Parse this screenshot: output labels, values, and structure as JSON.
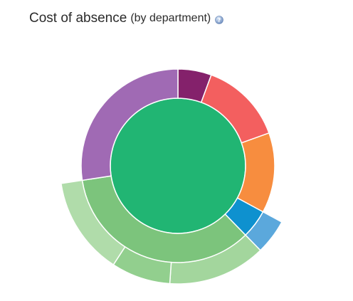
{
  "header": {
    "title": "Cost of absence",
    "subtitle": "(by department)",
    "help_icon": "help-circle-icon"
  },
  "chart_data": {
    "type": "sunburst",
    "title": "Cost of absence",
    "subtitle": "(by department)",
    "rings": [
      {
        "level": 1,
        "slices": [
          {
            "value": 100,
            "color": "#21b573"
          }
        ]
      },
      {
        "level": 2,
        "slices": [
          {
            "value": 5.6,
            "color": "#84216b"
          },
          {
            "value": 13.9,
            "color": "#f35f5f"
          },
          {
            "value": 13.4,
            "color": "#f78d3f"
          },
          {
            "value": 4.8,
            "color": "#0e91cf"
          },
          {
            "value": 34.9,
            "color": "#7cc47c"
          },
          {
            "value": 27.4,
            "color": "#a06ab4"
          }
        ]
      },
      {
        "level": 3,
        "slices": [
          {
            "value": 4.8,
            "color": "#5ba8dc",
            "parent_index": 3
          },
          {
            "value": 13.4,
            "color": "#a3d69d",
            "parent_index": 4
          },
          {
            "value": 8.1,
            "color": "#92cf8e",
            "parent_index": 4
          },
          {
            "value": 13.4,
            "color": "#b0dcaa",
            "parent_index": 4
          }
        ]
      }
    ]
  }
}
